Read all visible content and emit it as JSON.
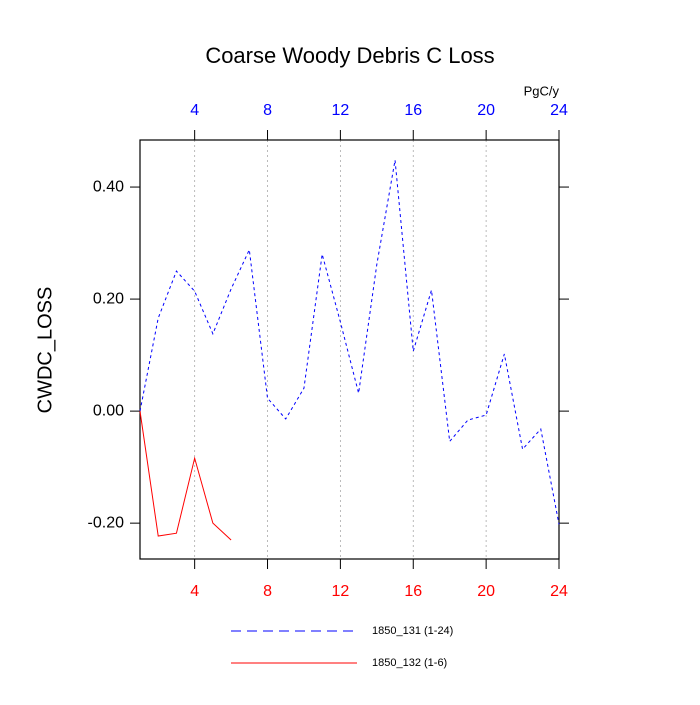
{
  "chart_data": {
    "type": "line",
    "title": "Coarse Woody Debris C Loss",
    "ylabel": "CWDC_LOSS",
    "x2label": "PgC/y",
    "x": [
      1,
      2,
      3,
      4,
      5,
      6,
      7,
      8,
      9,
      10,
      11,
      12,
      13,
      14,
      15,
      16,
      17,
      18,
      19,
      20,
      21,
      22,
      23,
      24
    ],
    "series": [
      {
        "name": "1850_131 (1-24)",
        "color": "#0000ff",
        "dash": "dashed",
        "values": [
          0.0,
          0.166,
          0.25,
          0.214,
          0.138,
          0.218,
          0.288,
          0.023,
          -0.014,
          0.041,
          0.28,
          0.159,
          0.032,
          0.262,
          0.448,
          0.107,
          0.216,
          -0.054,
          -0.016,
          -0.007,
          0.102,
          -0.068,
          -0.032,
          -0.202
        ]
      },
      {
        "name": "1850_132 (1-6)",
        "color": "#ff0000",
        "dash": "solid",
        "values": [
          0.0,
          -0.223,
          -0.218,
          -0.084,
          -0.2,
          -0.23,
          null,
          null,
          null,
          null,
          null,
          null,
          null,
          null,
          null,
          null,
          null,
          null,
          null,
          null,
          null,
          null,
          null,
          null
        ]
      }
    ],
    "xlim": [
      1,
      24
    ],
    "xticks": [
      4,
      8,
      12,
      16,
      20,
      24
    ],
    "xtick_color": "#ff0000",
    "x2ticks": [
      4,
      8,
      12,
      16,
      20,
      24
    ],
    "x2tick_color": "#0000ff",
    "ylim": [
      -0.264,
      0.484
    ],
    "yticks": [
      {
        "value": -0.2,
        "label": "-0.20"
      },
      {
        "value": 0,
        "label": "0.00"
      },
      {
        "value": 0.2,
        "label": "0.20"
      },
      {
        "value": 0.4,
        "label": "0.40"
      }
    ],
    "grid": "x",
    "legend": "bottom"
  }
}
